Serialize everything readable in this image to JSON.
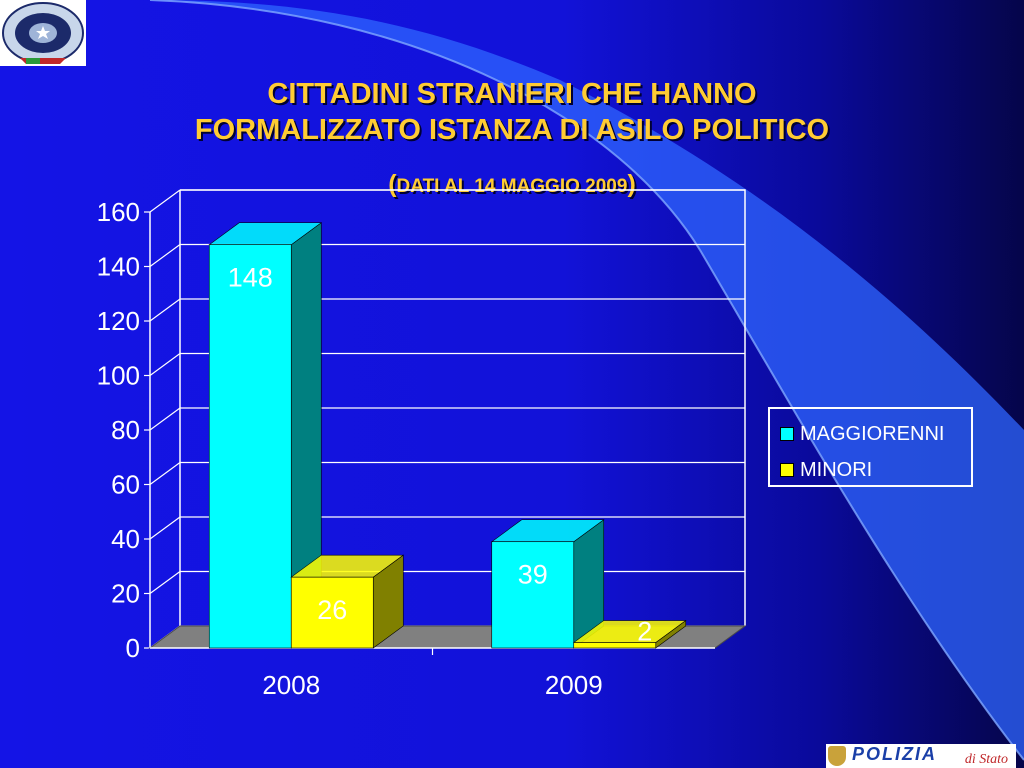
{
  "slide": {
    "title_line1": "CITTADINI STRANIERI CHE HANNO",
    "title_line2": "FORMALIZZATO ISTANZA DI ASILO POLITICO",
    "subtitle_open": "(",
    "subtitle_text": "DATI AL 14 MAGGIO 2009",
    "subtitle_close": ")",
    "footer_logo_word": "POLIZIA",
    "footer_logo_sub": "di Stato"
  },
  "colors": {
    "maggiorenni": "#00ffff",
    "maggiorenni_side": "#008080",
    "minori": "#ffff00",
    "minori_side": "#808000",
    "title": "#ffcc33",
    "grid": "#ffffff"
  },
  "chart_data": {
    "type": "bar",
    "title": "",
    "xlabel": "",
    "ylabel": "",
    "categories": [
      "2008",
      "2009"
    ],
    "series": [
      {
        "name": "MAGGIORENNI",
        "values": [
          148,
          39
        ]
      },
      {
        "name": "MINORI",
        "values": [
          26,
          2
        ]
      }
    ],
    "ylim": [
      0,
      160
    ],
    "yticks": [
      0,
      20,
      40,
      60,
      80,
      100,
      120,
      140,
      160
    ],
    "data_labels": true,
    "grid": true,
    "legend": "right",
    "style": "3d-clustered-column"
  }
}
